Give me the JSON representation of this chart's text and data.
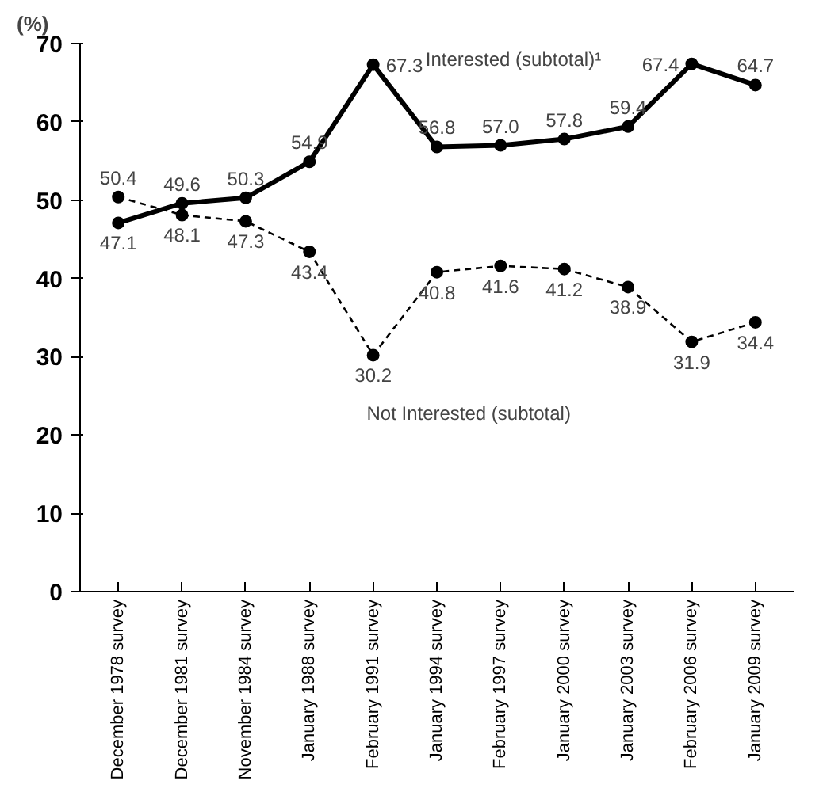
{
  "chart_data": {
    "type": "line",
    "ylabel": "(%)",
    "categories": [
      "December 1978 survey",
      "December 1981 survey",
      "November 1984 survey",
      "January 1988 survey",
      "February 1991 survey",
      "January 1994 survey",
      "February 1997 survey",
      "January 2000 survey",
      "January 2003 survey",
      "February 2006 survey",
      "January 2009 survey"
    ],
    "series": [
      {
        "name": "Interested (subtotal)¹",
        "color": "#000000",
        "line_style": "solid",
        "values": [
          47.1,
          49.6,
          50.3,
          54.9,
          67.3,
          56.8,
          57.0,
          57.8,
          59.4,
          67.4,
          64.7
        ],
        "value_labels": [
          "47.1",
          "49.6",
          "50.3",
          "54.9",
          "67.3",
          "56.8",
          "57.0",
          "57.8",
          "59.4",
          "67.4",
          "64.7"
        ]
      },
      {
        "name": "Not Interested (subtotal)",
        "color": "#000000",
        "line_style": "dashed",
        "values": [
          50.4,
          48.1,
          47.3,
          43.4,
          30.2,
          40.8,
          41.6,
          41.2,
          38.9,
          31.9,
          34.4
        ],
        "value_labels": [
          "50.4",
          "48.1",
          "47.3",
          "43.4",
          "30.2",
          "40.8",
          "41.6",
          "41.2",
          "38.9",
          "31.9",
          "34.4"
        ]
      }
    ],
    "ylim": [
      0,
      70
    ],
    "yticks": [
      0,
      10,
      20,
      30,
      40,
      50,
      60,
      70
    ],
    "marker": "circle",
    "grid": false
  }
}
